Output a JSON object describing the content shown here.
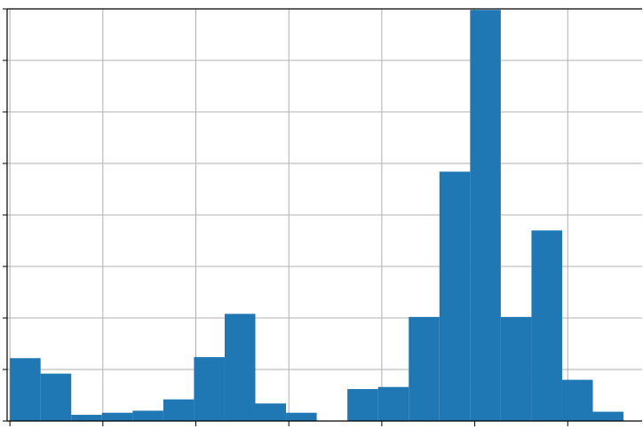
{
  "chart_data": {
    "type": "histogram",
    "title": "",
    "xlabel": "",
    "ylabel": "",
    "ylim": [
      0,
      8
    ],
    "grid": true,
    "bar_color": "#1f77b4",
    "bins": [
      {
        "x0": 0.0,
        "x1": 0.33,
        "count": 1.22
      },
      {
        "x0": 0.33,
        "x1": 0.66,
        "count": 0.92
      },
      {
        "x0": 0.66,
        "x1": 0.99,
        "count": 0.12
      },
      {
        "x0": 0.99,
        "x1": 1.32,
        "count": 0.16
      },
      {
        "x0": 1.32,
        "x1": 1.65,
        "count": 0.2
      },
      {
        "x0": 1.65,
        "x1": 1.98,
        "count": 0.42
      },
      {
        "x0": 1.98,
        "x1": 2.31,
        "count": 1.24
      },
      {
        "x0": 2.31,
        "x1": 2.64,
        "count": 2.08
      },
      {
        "x0": 2.64,
        "x1": 2.97,
        "count": 0.34
      },
      {
        "x0": 2.97,
        "x1": 3.3,
        "count": 0.16
      },
      {
        "x0": 3.3,
        "x1": 3.63,
        "count": 0.0
      },
      {
        "x0": 3.63,
        "x1": 3.96,
        "count": 0.62
      },
      {
        "x0": 3.96,
        "x1": 4.29,
        "count": 0.66
      },
      {
        "x0": 4.29,
        "x1": 4.62,
        "count": 2.02
      },
      {
        "x0": 4.62,
        "x1": 4.95,
        "count": 4.84
      },
      {
        "x0": 4.95,
        "x1": 5.28,
        "count": 7.98
      },
      {
        "x0": 5.28,
        "x1": 5.61,
        "count": 2.02
      },
      {
        "x0": 5.61,
        "x1": 5.94,
        "count": 3.7
      },
      {
        "x0": 5.94,
        "x1": 6.27,
        "count": 0.8
      },
      {
        "x0": 6.27,
        "x1": 6.6,
        "count": 0.18
      }
    ],
    "x_ticks": [
      0,
      1,
      2,
      3,
      4,
      5,
      6
    ],
    "y_ticks": [
      0,
      1,
      2,
      3,
      4,
      5,
      6,
      7,
      8
    ],
    "xlim": [
      -0.03,
      6.8
    ]
  }
}
